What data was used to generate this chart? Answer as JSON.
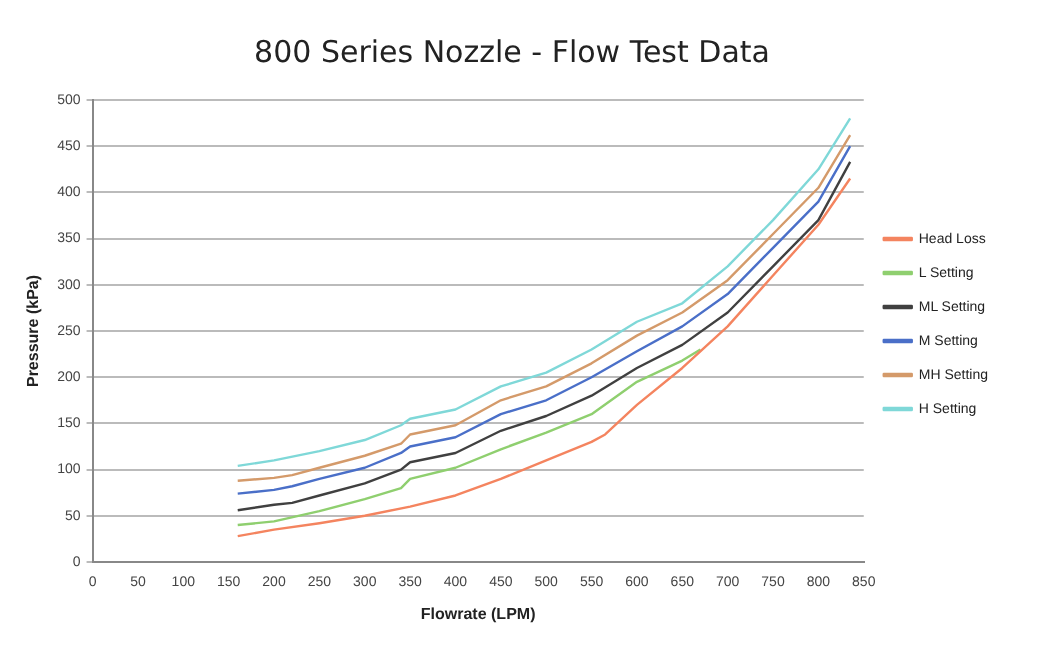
{
  "chart_data": {
    "type": "line",
    "title": "800 Series Nozzle - Flow Test Data",
    "xlabel": "Flowrate (LPM)",
    "ylabel": "Pressure (kPa)",
    "xlim": [
      0,
      850
    ],
    "xticks": [
      0,
      50,
      100,
      150,
      200,
      250,
      300,
      350,
      400,
      450,
      500,
      550,
      600,
      650,
      700,
      750,
      800,
      850
    ],
    "ylim": [
      0,
      500
    ],
    "yticks": [
      0,
      50,
      100,
      150,
      200,
      250,
      300,
      350,
      400,
      450,
      500
    ],
    "grid": "y",
    "legend": "right",
    "marker": "none",
    "line_style": "solid",
    "series": [
      {
        "name": "Head Loss",
        "color": "#f4845f",
        "x": [
          160,
          200,
          250,
          300,
          350,
          400,
          450,
          500,
          550,
          565,
          600,
          650,
          700,
          750,
          800,
          835
        ],
        "values": [
          28,
          35,
          42,
          50,
          60,
          72,
          90,
          110,
          130,
          138,
          170,
          210,
          255,
          310,
          365,
          415
        ]
      },
      {
        "name": "L Setting",
        "color": "#8fcf6f",
        "x": [
          160,
          200,
          250,
          300,
          340,
          350,
          400,
          450,
          500,
          550,
          600,
          650,
          670
        ],
        "values": [
          40,
          44,
          55,
          68,
          80,
          90,
          102,
          122,
          140,
          160,
          195,
          218,
          230
        ]
      },
      {
        "name": "ML Setting",
        "color": "#404040",
        "x": [
          160,
          200,
          220,
          250,
          300,
          340,
          350,
          400,
          450,
          500,
          550,
          600,
          650,
          700,
          750,
          800,
          835
        ],
        "values": [
          56,
          62,
          64,
          72,
          85,
          100,
          108,
          118,
          142,
          158,
          180,
          210,
          235,
          270,
          320,
          370,
          433
        ]
      },
      {
        "name": "M Setting",
        "color": "#4a6fc8",
        "x": [
          160,
          200,
          220,
          250,
          300,
          340,
          350,
          400,
          450,
          500,
          550,
          600,
          650,
          700,
          750,
          800,
          835
        ],
        "values": [
          74,
          78,
          82,
          90,
          102,
          118,
          125,
          135,
          160,
          175,
          200,
          228,
          255,
          290,
          340,
          390,
          450
        ]
      },
      {
        "name": "MH Setting",
        "color": "#d49a6a",
        "x": [
          160,
          200,
          220,
          250,
          300,
          340,
          350,
          400,
          450,
          500,
          550,
          600,
          650,
          700,
          750,
          800,
          835
        ],
        "values": [
          88,
          91,
          94,
          102,
          115,
          128,
          138,
          148,
          175,
          190,
          215,
          245,
          270,
          305,
          355,
          405,
          462
        ]
      },
      {
        "name": "H Setting",
        "color": "#7fd8d8",
        "x": [
          160,
          200,
          250,
          300,
          340,
          350,
          400,
          450,
          500,
          550,
          600,
          650,
          700,
          750,
          800,
          835
        ],
        "values": [
          104,
          110,
          120,
          132,
          148,
          155,
          165,
          190,
          205,
          230,
          260,
          280,
          320,
          370,
          425,
          480
        ]
      }
    ]
  }
}
